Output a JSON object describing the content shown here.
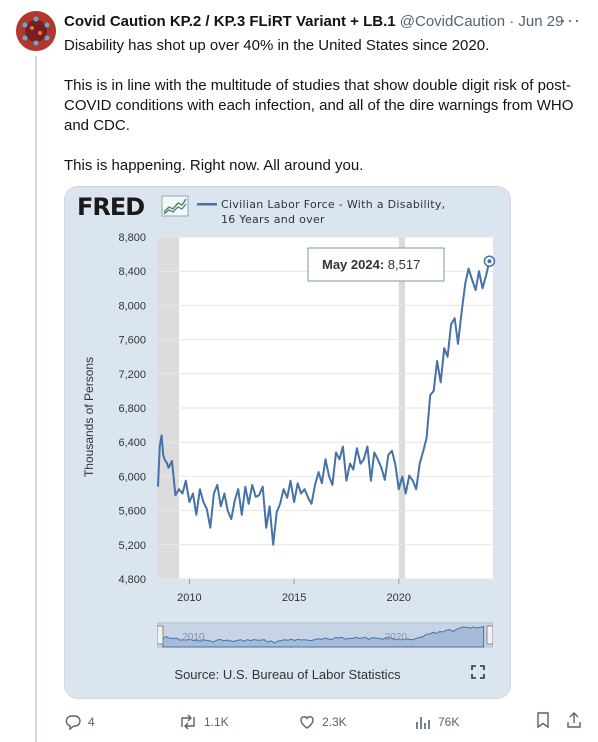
{
  "post": {
    "display_name": "Covid Caution KP.2 / KP.3 FLiRT Variant + LB.1",
    "handle": "@CovidCaution",
    "separator": "·",
    "date": "Jun 29",
    "more_icon": "more-icon",
    "paragraphs": [
      "Disability has shot up over 40% in the United States since 2020.",
      "This is in line with the multitude of studies that show double digit risk of post-COVID conditions with each infection, and all of the dire warnings from WHO and CDC.",
      "This is happening. Right now. All around you."
    ]
  },
  "card": {
    "logo_text": "FRED",
    "legend_line1": "Civilian Labor Force - With a Disability,",
    "legend_line2": "16 Years and over",
    "tooltip_label": "May 2024:",
    "tooltip_value": "8,517",
    "ylabel": "Thousands of Persons",
    "source": "Source: U.S. Bureau of Labor Statistics",
    "navigator_labels": [
      "2010",
      "2020"
    ]
  },
  "actions": {
    "replies": "4",
    "reposts": "1.1K",
    "likes": "2.3K",
    "views": "76K"
  },
  "colors": {
    "line": "#4572a7",
    "card_bg": "#dbe5ef",
    "recession": "#dcdcdc"
  },
  "chart_data": {
    "type": "line",
    "title": "",
    "xlabel": "",
    "ylabel": "Thousands of Persons",
    "ylim": [
      4800,
      8800
    ],
    "yticks": [
      4800,
      5200,
      5600,
      6000,
      6400,
      6800,
      7200,
      7600,
      8000,
      8400,
      8800
    ],
    "ytick_labels": [
      "4,800",
      "5,200",
      "5,600",
      "6,000",
      "6,400",
      "6,800",
      "7,200",
      "7,600",
      "8,000",
      "8,400",
      "8,800"
    ],
    "xlim": [
      2008.5,
      2024.5
    ],
    "xticks": [
      2010,
      2015,
      2020
    ],
    "grid": "horizontal",
    "shaded_periods": [
      [
        2008.5,
        2009.5
      ],
      [
        2020.0,
        2020.3
      ]
    ],
    "series": [
      {
        "name": "Civilian Labor Force - With a Disability, 16 Years and over",
        "x": [
          2008.5,
          2008.58,
          2008.67,
          2008.75,
          2008.83,
          2008.92,
          2009.0,
          2009.17,
          2009.33,
          2009.5,
          2009.67,
          2009.83,
          2010.0,
          2010.17,
          2010.33,
          2010.5,
          2010.67,
          2010.83,
          2011.0,
          2011.17,
          2011.33,
          2011.5,
          2011.67,
          2011.83,
          2012.0,
          2012.17,
          2012.33,
          2012.5,
          2012.67,
          2012.83,
          2013.0,
          2013.17,
          2013.33,
          2013.5,
          2013.67,
          2013.83,
          2014.0,
          2014.17,
          2014.33,
          2014.5,
          2014.67,
          2014.83,
          2015.0,
          2015.17,
          2015.33,
          2015.5,
          2015.67,
          2015.83,
          2016.0,
          2016.17,
          2016.33,
          2016.5,
          2016.67,
          2016.83,
          2017.0,
          2017.17,
          2017.33,
          2017.5,
          2017.67,
          2017.83,
          2018.0,
          2018.17,
          2018.33,
          2018.5,
          2018.67,
          2018.83,
          2019.0,
          2019.17,
          2019.33,
          2019.5,
          2019.67,
          2019.83,
          2020.0,
          2020.17,
          2020.33,
          2020.5,
          2020.67,
          2020.83,
          2021.0,
          2021.17,
          2021.33,
          2021.5,
          2021.67,
          2021.83,
          2022.0,
          2022.17,
          2022.33,
          2022.5,
          2022.67,
          2022.83,
          2023.0,
          2023.17,
          2023.33,
          2023.5,
          2023.67,
          2023.83,
          2024.0,
          2024.17,
          2024.33
        ],
        "values": [
          5880,
          6350,
          6480,
          6250,
          6190,
          6160,
          6100,
          6180,
          5780,
          5850,
          5800,
          5950,
          5700,
          5800,
          5550,
          5850,
          5700,
          5620,
          5400,
          5800,
          5900,
          5650,
          5800,
          5600,
          5500,
          5720,
          5850,
          5550,
          5880,
          5680,
          5900,
          5760,
          5780,
          5880,
          5400,
          5650,
          5200,
          5580,
          5680,
          5850,
          5750,
          5950,
          5700,
          5920,
          5800,
          5850,
          5750,
          5680,
          5900,
          6050,
          5920,
          6200,
          6000,
          5900,
          6280,
          6200,
          6350,
          5950,
          6150,
          6080,
          6330,
          6150,
          6200,
          6350,
          5950,
          6280,
          6200,
          6100,
          5960,
          6250,
          6300,
          6150,
          5850,
          6000,
          5800,
          6010,
          5950,
          5850,
          6150,
          6300,
          6450,
          6950,
          7000,
          7350,
          7100,
          7500,
          7400,
          7780,
          7850,
          7550,
          7920,
          8250,
          8430,
          8300,
          8180,
          8400,
          8200,
          8350,
          8517
        ]
      }
    ]
  }
}
